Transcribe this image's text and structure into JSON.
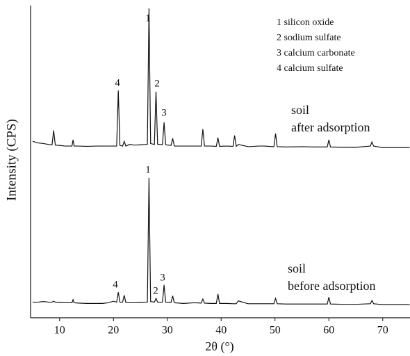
{
  "chart_data": {
    "type": "line",
    "x_label": "2θ (°)",
    "y_label": "Intensity (CPS)",
    "xlim": [
      5,
      75
    ],
    "xticks": [
      10,
      20,
      30,
      40,
      50,
      60,
      70
    ],
    "ylim": [
      0,
      100
    ],
    "key": [
      "1 silicon oxide",
      "2 sodium sulfate",
      "3 calcium carbonate",
      "4 calcium sulfate"
    ],
    "x": [
      5,
      6,
      7,
      8,
      8.6,
      8.9,
      9.2,
      10,
      11,
      12,
      12.3,
      12.5,
      12.7,
      13.5,
      15,
      17,
      18,
      19,
      20,
      20.6,
      20.9,
      21.2,
      21.7,
      22,
      22.3,
      23,
      24,
      25,
      26,
      26.3,
      26.6,
      26.9,
      27.6,
      27.9,
      28.2,
      29.1,
      29.4,
      29.7,
      30.7,
      31,
      31.3,
      33,
      35,
      36.3,
      36.6,
      36.9,
      38,
      39.1,
      39.4,
      39.7,
      41,
      42.2,
      42.5,
      42.8,
      43.2,
      45,
      47,
      48,
      49.8,
      50.1,
      50.4,
      52,
      55,
      57,
      59.7,
      60,
      60.3,
      63,
      65,
      67.7,
      68,
      68.3,
      70,
      72,
      75
    ],
    "series": [
      {
        "label_lines": [
          "soil",
          "after adsorption"
        ],
        "color": "#111111",
        "peak_labels": [
          "1",
          "4",
          "2",
          "3"
        ],
        "values": [
          56.5,
          56,
          55.8,
          55.5,
          55.4,
          60,
          55.3,
          55.2,
          55,
          55,
          55,
          57,
          55,
          55,
          54.9,
          55,
          55,
          55,
          55,
          55,
          72.8,
          55.2,
          55,
          56.5,
          55,
          55.5,
          55.3,
          55.4,
          55.5,
          55.6,
          99.1,
          55.8,
          55.5,
          72.4,
          55.6,
          55.4,
          62.6,
          55.4,
          55.2,
          57.5,
          55,
          55,
          55,
          55,
          60.4,
          55,
          55,
          54.9,
          57.7,
          54.9,
          55,
          54.9,
          58.4,
          54.9,
          55.5,
          54.8,
          55,
          55,
          54.8,
          59,
          54.8,
          54.7,
          54.8,
          54.7,
          54.7,
          57,
          54.7,
          54.6,
          54.6,
          55,
          56.3,
          55,
          54.5,
          54.5,
          54.5
        ]
      },
      {
        "label_lines": [
          "soil",
          "before adsorption"
        ],
        "color": "#111111",
        "peak_labels": [
          "1",
          "4",
          "2",
          "3"
        ],
        "values": [
          5,
          5,
          5.2,
          5,
          5,
          5.3,
          5,
          4.9,
          4.8,
          4.8,
          4.8,
          5.8,
          4.8,
          4.7,
          4.6,
          4.6,
          4.6,
          4.8,
          5.3,
          5,
          8.2,
          5,
          5,
          7.2,
          4.9,
          4.8,
          4.8,
          4.9,
          5,
          5,
          44.8,
          5.2,
          5,
          6.2,
          5,
          5,
          10.5,
          5,
          4.9,
          7,
          4.8,
          4.6,
          4.8,
          4.7,
          6,
          4.7,
          4.6,
          4.6,
          7.6,
          4.6,
          4.6,
          4.5,
          4.5,
          4.5,
          5.4,
          4.5,
          4.5,
          4.5,
          4.5,
          6.2,
          4.5,
          4.4,
          4.4,
          4.4,
          4.4,
          6.6,
          4.4,
          4.3,
          4.3,
          4.5,
          5.5,
          4.5,
          4.2,
          4.2,
          4.2
        ]
      }
    ]
  }
}
